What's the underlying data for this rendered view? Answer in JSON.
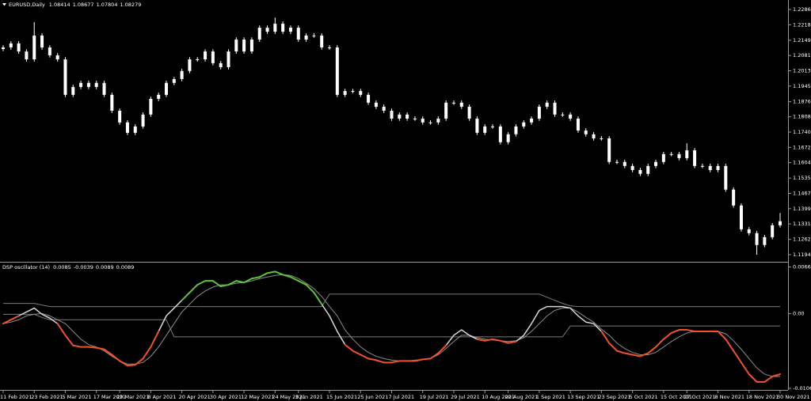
{
  "chart_data": {
    "type": "candlestick",
    "symbol": "EURUSD,Daily",
    "quote": [
      1.08414,
      1.08677,
      1.07804,
      1.08279
    ],
    "color": "#ffffff",
    "categories": [
      "11 Feb 2021",
      null,
      null,
      null,
      "23 Feb 2021",
      null,
      null,
      null,
      "5 Mar 2021",
      null,
      null,
      null,
      "17 Mar 2021",
      null,
      null,
      "29 Mar 2021",
      null,
      null,
      null,
      "8 Apr 2021",
      null,
      null,
      null,
      "20 Apr 2021",
      null,
      null,
      null,
      "30 Apr 2021",
      null,
      null,
      null,
      "12 May 2021",
      null,
      null,
      null,
      "24 May 2021",
      null,
      null,
      "3 Jun 2021",
      null,
      null,
      null,
      "15 Jun 2021",
      null,
      null,
      null,
      "25 Jun 2021",
      null,
      null,
      null,
      "7 Jul 2021",
      null,
      null,
      null,
      "19 Jul 2021",
      null,
      null,
      null,
      "29 Jul 2021",
      null,
      null,
      null,
      "10 Aug 2021",
      null,
      null,
      "20 Aug 2021",
      null,
      null,
      null,
      "1 Sep 2021",
      null,
      null,
      null,
      "13 Sep 2021",
      null,
      null,
      null,
      "23 Sep 2021",
      null,
      null,
      null,
      "5 Oct 2021",
      null,
      null,
      null,
      "15 Oct 2021",
      null,
      null,
      "27 Oct 2021",
      null,
      null,
      null,
      "8 Nov 2021",
      null,
      null,
      null,
      "18 Nov 2021",
      null,
      null,
      null,
      "30 Nov 2021"
    ],
    "open": [
      1.211,
      1.2117,
      1.2135,
      1.2099,
      1.2064,
      1.217,
      1.2117,
      1.2082,
      1.2064,
      1.1906,
      1.1941,
      1.1959,
      1.1941,
      1.1959,
      1.1906,
      1.1835,
      1.1783,
      1.1737,
      1.1765,
      1.1818,
      1.1888,
      1.1906,
      1.1959,
      1.1976,
      1.2012,
      1.2064,
      1.2064,
      1.2099,
      1.2047,
      1.2029,
      1.2099,
      1.2152,
      1.2099,
      1.2152,
      1.2205,
      1.2187,
      1.2223,
      1.2187,
      1.2205,
      1.2152,
      1.217,
      1.217,
      1.2117,
      1.2117,
      1.1906,
      1.1923,
      1.1923,
      1.1906,
      1.1871,
      1.1853,
      1.1835,
      1.18,
      1.1818,
      1.18,
      1.18,
      1.1783,
      1.1783,
      1.18,
      1.1871,
      1.1871,
      1.1853,
      1.18,
      1.1737,
      1.1765,
      1.1765,
      1.1695,
      1.173,
      1.1765,
      1.1783,
      1.18,
      1.1853,
      1.1871,
      1.1818,
      1.1818,
      1.18,
      1.1747,
      1.173,
      1.1712,
      1.1712,
      1.1607,
      1.1607,
      1.1589,
      1.1571,
      1.1554,
      1.1589,
      1.1607,
      1.1642,
      1.1642,
      1.1624,
      1.1659,
      1.1589,
      1.1589,
      1.1571,
      1.1589,
      1.1484,
      1.1413,
      1.1307,
      1.129,
      1.1237,
      1.1272,
      1.1325
    ],
    "high": [
      1.2127,
      1.2145,
      1.2145,
      1.2109,
      1.223,
      1.218,
      1.2127,
      1.2092,
      1.2074,
      1.1951,
      1.1969,
      1.1969,
      1.1969,
      1.1969,
      1.1916,
      1.1845,
      1.1793,
      1.1775,
      1.1828,
      1.1898,
      1.1916,
      1.1969,
      1.1986,
      1.2022,
      1.2074,
      1.2074,
      1.2109,
      1.2109,
      1.2057,
      1.2109,
      1.2162,
      1.2162,
      1.2162,
      1.2215,
      1.2215,
      1.225,
      1.2233,
      1.2215,
      1.2215,
      1.218,
      1.218,
      1.218,
      1.2127,
      1.2127,
      1.1933,
      1.1933,
      1.1933,
      1.1916,
      1.1881,
      1.1863,
      1.1845,
      1.1828,
      1.1828,
      1.181,
      1.181,
      1.1793,
      1.181,
      1.1881,
      1.1881,
      1.1881,
      1.1863,
      1.181,
      1.1775,
      1.1775,
      1.1775,
      1.174,
      1.1775,
      1.1793,
      1.181,
      1.1863,
      1.1881,
      1.1881,
      1.1828,
      1.1828,
      1.181,
      1.1757,
      1.174,
      1.1722,
      1.1722,
      1.1617,
      1.1617,
      1.1599,
      1.1581,
      1.1599,
      1.1617,
      1.1652,
      1.1652,
      1.1652,
      1.169,
      1.1669,
      1.1599,
      1.1599,
      1.1599,
      1.1599,
      1.1494,
      1.1423,
      1.1317,
      1.13,
      1.1282,
      1.1335,
      1.138
    ],
    "low": [
      1.21,
      1.2107,
      1.2089,
      1.2054,
      1.2054,
      1.2107,
      1.2072,
      1.2054,
      1.1896,
      1.1896,
      1.1931,
      1.1931,
      1.1931,
      1.1896,
      1.1825,
      1.1773,
      1.1727,
      1.1727,
      1.1755,
      1.1808,
      1.1878,
      1.1896,
      1.1949,
      1.1966,
      1.2002,
      1.2054,
      1.2054,
      1.2037,
      1.2019,
      1.2019,
      1.2089,
      1.2089,
      1.2089,
      1.2142,
      1.2177,
      1.2177,
      1.2177,
      1.2177,
      1.2142,
      1.2142,
      1.216,
      1.2107,
      1.2107,
      1.1896,
      1.1896,
      1.1913,
      1.1896,
      1.1861,
      1.1843,
      1.1825,
      1.179,
      1.179,
      1.179,
      1.179,
      1.1773,
      1.1773,
      1.1773,
      1.179,
      1.1861,
      1.1843,
      1.179,
      1.1727,
      1.1727,
      1.1755,
      1.1685,
      1.1685,
      1.172,
      1.1755,
      1.1773,
      1.179,
      1.1843,
      1.1808,
      1.1808,
      1.179,
      1.1737,
      1.172,
      1.1702,
      1.1702,
      1.1597,
      1.1597,
      1.1579,
      1.1561,
      1.1544,
      1.1544,
      1.1579,
      1.1597,
      1.1632,
      1.1614,
      1.1614,
      1.1579,
      1.1579,
      1.1561,
      1.1561,
      1.1474,
      1.1403,
      1.1297,
      1.128,
      1.1194,
      1.1227,
      1.1262,
      1.1315
    ],
    "close": [
      1.2117,
      1.2135,
      1.2099,
      1.2064,
      1.217,
      1.2117,
      1.2082,
      1.2064,
      1.1906,
      1.1941,
      1.1959,
      1.1941,
      1.1959,
      1.1906,
      1.1835,
      1.1783,
      1.1737,
      1.1765,
      1.1818,
      1.1888,
      1.1906,
      1.1959,
      1.1976,
      1.2012,
      1.2064,
      1.2064,
      1.2099,
      1.2047,
      1.2029,
      1.2099,
      1.2152,
      1.2099,
      1.2152,
      1.2205,
      1.2187,
      1.2223,
      1.2187,
      1.2205,
      1.2152,
      1.217,
      1.217,
      1.2117,
      1.2117,
      1.1906,
      1.1923,
      1.1923,
      1.1906,
      1.1871,
      1.1853,
      1.1835,
      1.18,
      1.1818,
      1.18,
      1.18,
      1.1783,
      1.1783,
      1.18,
      1.1871,
      1.1871,
      1.1853,
      1.18,
      1.1737,
      1.1765,
      1.1765,
      1.1695,
      1.173,
      1.1765,
      1.1783,
      1.18,
      1.1853,
      1.1871,
      1.1818,
      1.1818,
      1.18,
      1.1747,
      1.173,
      1.1712,
      1.1712,
      1.1607,
      1.1607,
      1.1589,
      1.1571,
      1.1554,
      1.1589,
      1.1607,
      1.1642,
      1.1642,
      1.1624,
      1.1659,
      1.1589,
      1.1589,
      1.1571,
      1.1589,
      1.1484,
      1.1413,
      1.1307,
      1.129,
      1.1237,
      1.1272,
      1.1325,
      1.1343
    ],
    "ylim": [
      1.11658,
      1.23283
    ],
    "yticks": [
      {
        "value": 1.2286,
        "label": "1.22860"
      },
      {
        "value": 1.2218,
        "label": "1.22180"
      },
      {
        "value": 1.2149,
        "label": "1.21490"
      },
      {
        "value": 1.2081,
        "label": "1.20810"
      },
      {
        "value": 1.2013,
        "label": "1.20130"
      },
      {
        "value": 1.1945,
        "label": "1.19450"
      },
      {
        "value": 1.1876,
        "label": "1.18760"
      },
      {
        "value": 1.1808,
        "label": "1.18080"
      },
      {
        "value": 1.174,
        "label": "1.17400"
      },
      {
        "value": 1.1672,
        "label": "1.16720"
      },
      {
        "value": 1.1604,
        "label": "1.16040"
      },
      {
        "value": 1.1535,
        "label": "1.15350"
      },
      {
        "value": 1.1467,
        "label": "1.14670"
      },
      {
        "value": 1.1399,
        "label": "1.13990"
      },
      {
        "value": 1.1331,
        "label": "1.13310"
      },
      {
        "value": 1.1262,
        "label": "1.12620"
      },
      {
        "value": 1.1194,
        "label": "1.11940"
      }
    ],
    "indicator": {
      "type": "line",
      "name": "DSP oscillator (14)",
      "readout": [
        0.0085,
        -0.0039,
        0.0089,
        0.0089
      ],
      "ylim": [
        -0.0107,
        0.0071
      ],
      "yticks": [
        0.0066,
        {
          "value": 0,
          "label": "0.00"
        },
        -0.0106
      ],
      "above_color": "#5cc23a",
      "below_color": "#f0502a",
      "main": {
        "color": "#d8d8d8",
        "values": [
          -0.00143,
          -0.00088,
          -0.00033,
          0.00022,
          0.00077,
          -0.00011,
          -0.00066,
          -0.00143,
          -0.00308,
          -0.00451,
          -0.00473,
          -0.00473,
          -0.00484,
          -0.00506,
          -0.00583,
          -0.00671,
          -0.00737,
          -0.00726,
          -0.00638,
          -0.00473,
          -0.00253,
          -0.00033,
          0.00077,
          0.00187,
          0.00297,
          0.00407,
          0.00462,
          0.00462,
          0.00385,
          0.00407,
          0.00462,
          0.0044,
          0.00495,
          0.00517,
          0.00572,
          0.00594,
          0.0055,
          0.00517,
          0.00462,
          0.00407,
          0.00297,
          0.00132,
          -0.00033,
          -0.00253,
          -0.0044,
          -0.00528,
          -0.00583,
          -0.00638,
          -0.0066,
          -0.00693,
          -0.00693,
          -0.00671,
          -0.00671,
          -0.00671,
          -0.00649,
          -0.00638,
          -0.00561,
          -0.00451,
          -0.00308,
          -0.00231,
          -0.00308,
          -0.00363,
          -0.00385,
          -0.00363,
          -0.00385,
          -0.00418,
          -0.00396,
          -0.00308,
          -0.00143,
          0.00044,
          0.00099,
          0.00099,
          0.00099,
          0.00077,
          -0.00033,
          -0.00121,
          -0.00143,
          -0.00253,
          -0.00418,
          -0.00528,
          -0.00561,
          -0.00583,
          -0.00605,
          -0.00561,
          -0.00473,
          -0.00363,
          -0.00275,
          -0.00231,
          -0.00231,
          -0.00253,
          -0.00253,
          -0.00253,
          -0.00253,
          -0.00363,
          -0.00528,
          -0.00693,
          -0.00858,
          -0.00968,
          -0.00968,
          -0.00891,
          -0.00858
        ]
      },
      "signal": {
        "color": "#8c8c8c",
        "values": [
          -0.00143,
          -0.00121,
          -0.00088,
          -0.00033,
          -0.00011,
          0.0,
          -0.00033,
          -0.00088,
          -0.00143,
          -0.00253,
          -0.00363,
          -0.0044,
          -0.00473,
          -0.00528,
          -0.00605,
          -0.00671,
          -0.00715,
          -0.00715,
          -0.00693,
          -0.00605,
          -0.00473,
          -0.00308,
          -0.00143,
          0.00022,
          0.00132,
          0.00242,
          0.00319,
          0.00374,
          0.00407,
          0.00407,
          0.00429,
          0.0044,
          0.00462,
          0.00495,
          0.00517,
          0.00539,
          0.0055,
          0.00539,
          0.00495,
          0.00429,
          0.00352,
          0.00242,
          0.00099,
          -0.00033,
          -0.00231,
          -0.00363,
          -0.00473,
          -0.0055,
          -0.00605,
          -0.00638,
          -0.0066,
          -0.00671,
          -0.00671,
          -0.0066,
          -0.00649,
          -0.00638,
          -0.00583,
          -0.00495,
          -0.00396,
          -0.00308,
          -0.00308,
          -0.00341,
          -0.00363,
          -0.00374,
          -0.00385,
          -0.00396,
          -0.00385,
          -0.00341,
          -0.00253,
          -0.00143,
          -0.00033,
          0.00044,
          0.00077,
          0.00077,
          0.00022,
          -0.00055,
          -0.00121,
          -0.0022,
          -0.00308,
          -0.00418,
          -0.00495,
          -0.0055,
          -0.00583,
          -0.00583,
          -0.0055,
          -0.00473,
          -0.00396,
          -0.0033,
          -0.00275,
          -0.00253,
          -0.00253,
          -0.00253,
          -0.00253,
          -0.00286,
          -0.00385,
          -0.00506,
          -0.00638,
          -0.0077,
          -0.00858,
          -0.00891,
          -0.00891
        ]
      },
      "upper": {
        "color": "#7a7a7a",
        "values": [
          0.00143,
          0.00143,
          0.00143,
          0.00143,
          0.00143,
          0.00121,
          0.00099,
          0.00099,
          0.00099,
          0.00099,
          0.00099,
          0.00099,
          0.00099,
          0.00099,
          0.00099,
          0.00099,
          0.00099,
          0.00099,
          0.00099,
          0.00099,
          0.00099,
          0.00099,
          0.00099,
          0.00099,
          0.00099,
          0.00099,
          0.00099,
          0.00099,
          0.00099,
          0.00099,
          0.00099,
          0.00099,
          0.00099,
          0.00099,
          0.00099,
          0.00099,
          0.00099,
          0.00099,
          0.00099,
          0.00099,
          0.00099,
          0.00099,
          0.00275,
          0.00275,
          0.00275,
          0.00275,
          0.00275,
          0.00275,
          0.00275,
          0.00275,
          0.00275,
          0.00275,
          0.00275,
          0.00275,
          0.00275,
          0.00275,
          0.00275,
          0.00275,
          0.00275,
          0.00275,
          0.00275,
          0.00275,
          0.00275,
          0.00275,
          0.00275,
          0.00275,
          0.00275,
          0.00275,
          0.00275,
          0.00275,
          0.00231,
          0.00187,
          0.00143,
          0.0011,
          0.00099,
          0.00099,
          0.00099,
          0.00099,
          0.00099,
          0.00099,
          0.00099,
          0.00099,
          0.00099,
          0.00099,
          0.00099,
          0.00099,
          0.00099,
          0.00099,
          0.00099,
          0.00099,
          0.00099,
          0.00099,
          0.00099,
          0.00099,
          0.00099,
          0.00099,
          0.00099,
          0.00099,
          0.00099,
          0.00099,
          0.00099
        ]
      },
      "lower": {
        "color": "#7a7a7a",
        "values": [
          -0.00011,
          -0.00011,
          -0.00011,
          -0.00011,
          -0.00011,
          -0.00055,
          -0.00088,
          -0.00088,
          -0.00088,
          -0.00088,
          -0.00088,
          -0.00088,
          -0.00088,
          -0.00088,
          -0.00088,
          -0.00088,
          -0.00088,
          -0.00088,
          -0.00088,
          -0.00088,
          -0.00088,
          -0.00088,
          -0.0033,
          -0.0033,
          -0.0033,
          -0.0033,
          -0.0033,
          -0.0033,
          -0.0033,
          -0.0033,
          -0.0033,
          -0.0033,
          -0.0033,
          -0.0033,
          -0.0033,
          -0.0033,
          -0.0033,
          -0.0033,
          -0.0033,
          -0.0033,
          -0.0033,
          -0.0033,
          -0.0033,
          -0.0033,
          -0.0033,
          -0.0033,
          -0.0033,
          -0.0033,
          -0.0033,
          -0.0033,
          -0.0033,
          -0.0033,
          -0.0033,
          -0.0033,
          -0.0033,
          -0.0033,
          -0.0033,
          -0.0033,
          -0.0033,
          -0.0033,
          -0.0033,
          -0.0033,
          -0.0033,
          -0.0033,
          -0.0033,
          -0.0033,
          -0.0033,
          -0.0033,
          -0.0033,
          -0.0033,
          -0.0033,
          -0.0033,
          -0.0033,
          -0.00176,
          -0.00176,
          -0.00176,
          -0.00176,
          -0.00176,
          -0.00176,
          -0.00176,
          -0.00176,
          -0.00176,
          -0.00176,
          -0.00176,
          -0.00176,
          -0.00176,
          -0.00176,
          -0.00176,
          -0.00176,
          -0.00176,
          -0.00176,
          -0.00176,
          -0.00176,
          -0.00176,
          -0.00176,
          -0.00176,
          -0.00176,
          -0.00176,
          -0.00176,
          -0.00176,
          -0.00176
        ]
      }
    }
  }
}
